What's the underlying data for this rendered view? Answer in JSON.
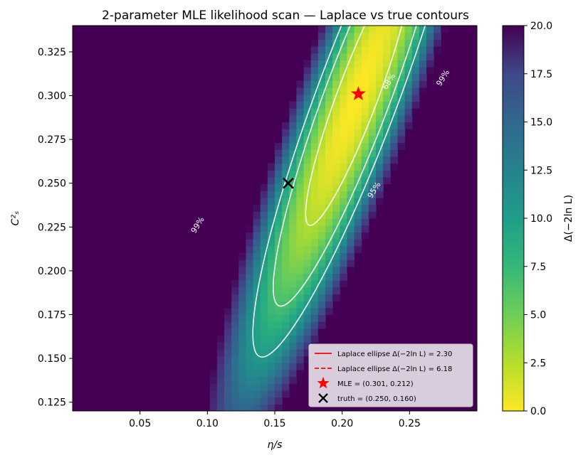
{
  "chart_data": {
    "type": "heatmap",
    "title": "2-parameter MLE likelihood scan — Laplace vs true contours",
    "xlabel": "η/s",
    "ylabel": "C²ₛ",
    "colorbar_label": "Δ(−2ln L)",
    "xlim": [
      0.0,
      0.3
    ],
    "ylim": [
      0.12,
      0.34
    ],
    "clim": [
      0,
      20
    ],
    "colormap": "viridis_r",
    "x_ticks": [
      0.05,
      0.1,
      0.15,
      0.2,
      0.25
    ],
    "x_tick_labels": [
      "0.05",
      "0.10",
      "0.15",
      "0.20",
      "0.25"
    ],
    "y_ticks": [
      0.125,
      0.15,
      0.175,
      0.2,
      0.225,
      0.25,
      0.275,
      0.3,
      0.325
    ],
    "y_tick_labels": [
      "0.125",
      "0.150",
      "0.175",
      "0.200",
      "0.225",
      "0.250",
      "0.275",
      "0.300",
      "0.325"
    ],
    "colorbar_ticks": [
      0.0,
      2.5,
      5.0,
      7.5,
      10.0,
      12.5,
      15.0,
      17.5,
      20.0
    ],
    "colorbar_tick_labels": [
      "0.0",
      "2.5",
      "5.0",
      "7.5",
      "10.0",
      "12.5",
      "15.0",
      "17.5",
      "20.0"
    ],
    "contours": [
      {
        "label": "68%",
        "level": 2.3
      },
      {
        "label": "95%",
        "level": 5.99
      },
      {
        "label": "99%",
        "level": 9.21
      }
    ],
    "contour_label_positions": [
      {
        "label": "68%",
        "x": 0.235,
        "y": 0.308
      },
      {
        "label": "95%",
        "x": 0.224,
        "y": 0.246
      },
      {
        "label": "99%",
        "x": 0.275,
        "y": 0.31
      },
      {
        "label": "99%",
        "x": 0.093,
        "y": 0.226
      }
    ],
    "mle": {
      "x": 0.212,
      "y": 0.301
    },
    "truth": {
      "x": 0.16,
      "y": 0.25
    },
    "legend": {
      "placement": "lower-right",
      "entries": [
        {
          "label": "Laplace ellipse Δ(−2ln L) = 2.30",
          "style": "solid",
          "color": "#ff0000"
        },
        {
          "label": "Laplace ellipse Δ(−2ln L) = 6.18",
          "style": "dashed",
          "color": "#ff0000"
        },
        {
          "label": "MLE = (0.301, 0.212)",
          "marker": "star",
          "color": "#ff0000"
        },
        {
          "label": "truth = (0.250, 0.160)",
          "marker": "x",
          "color": "#000000"
        }
      ]
    }
  }
}
